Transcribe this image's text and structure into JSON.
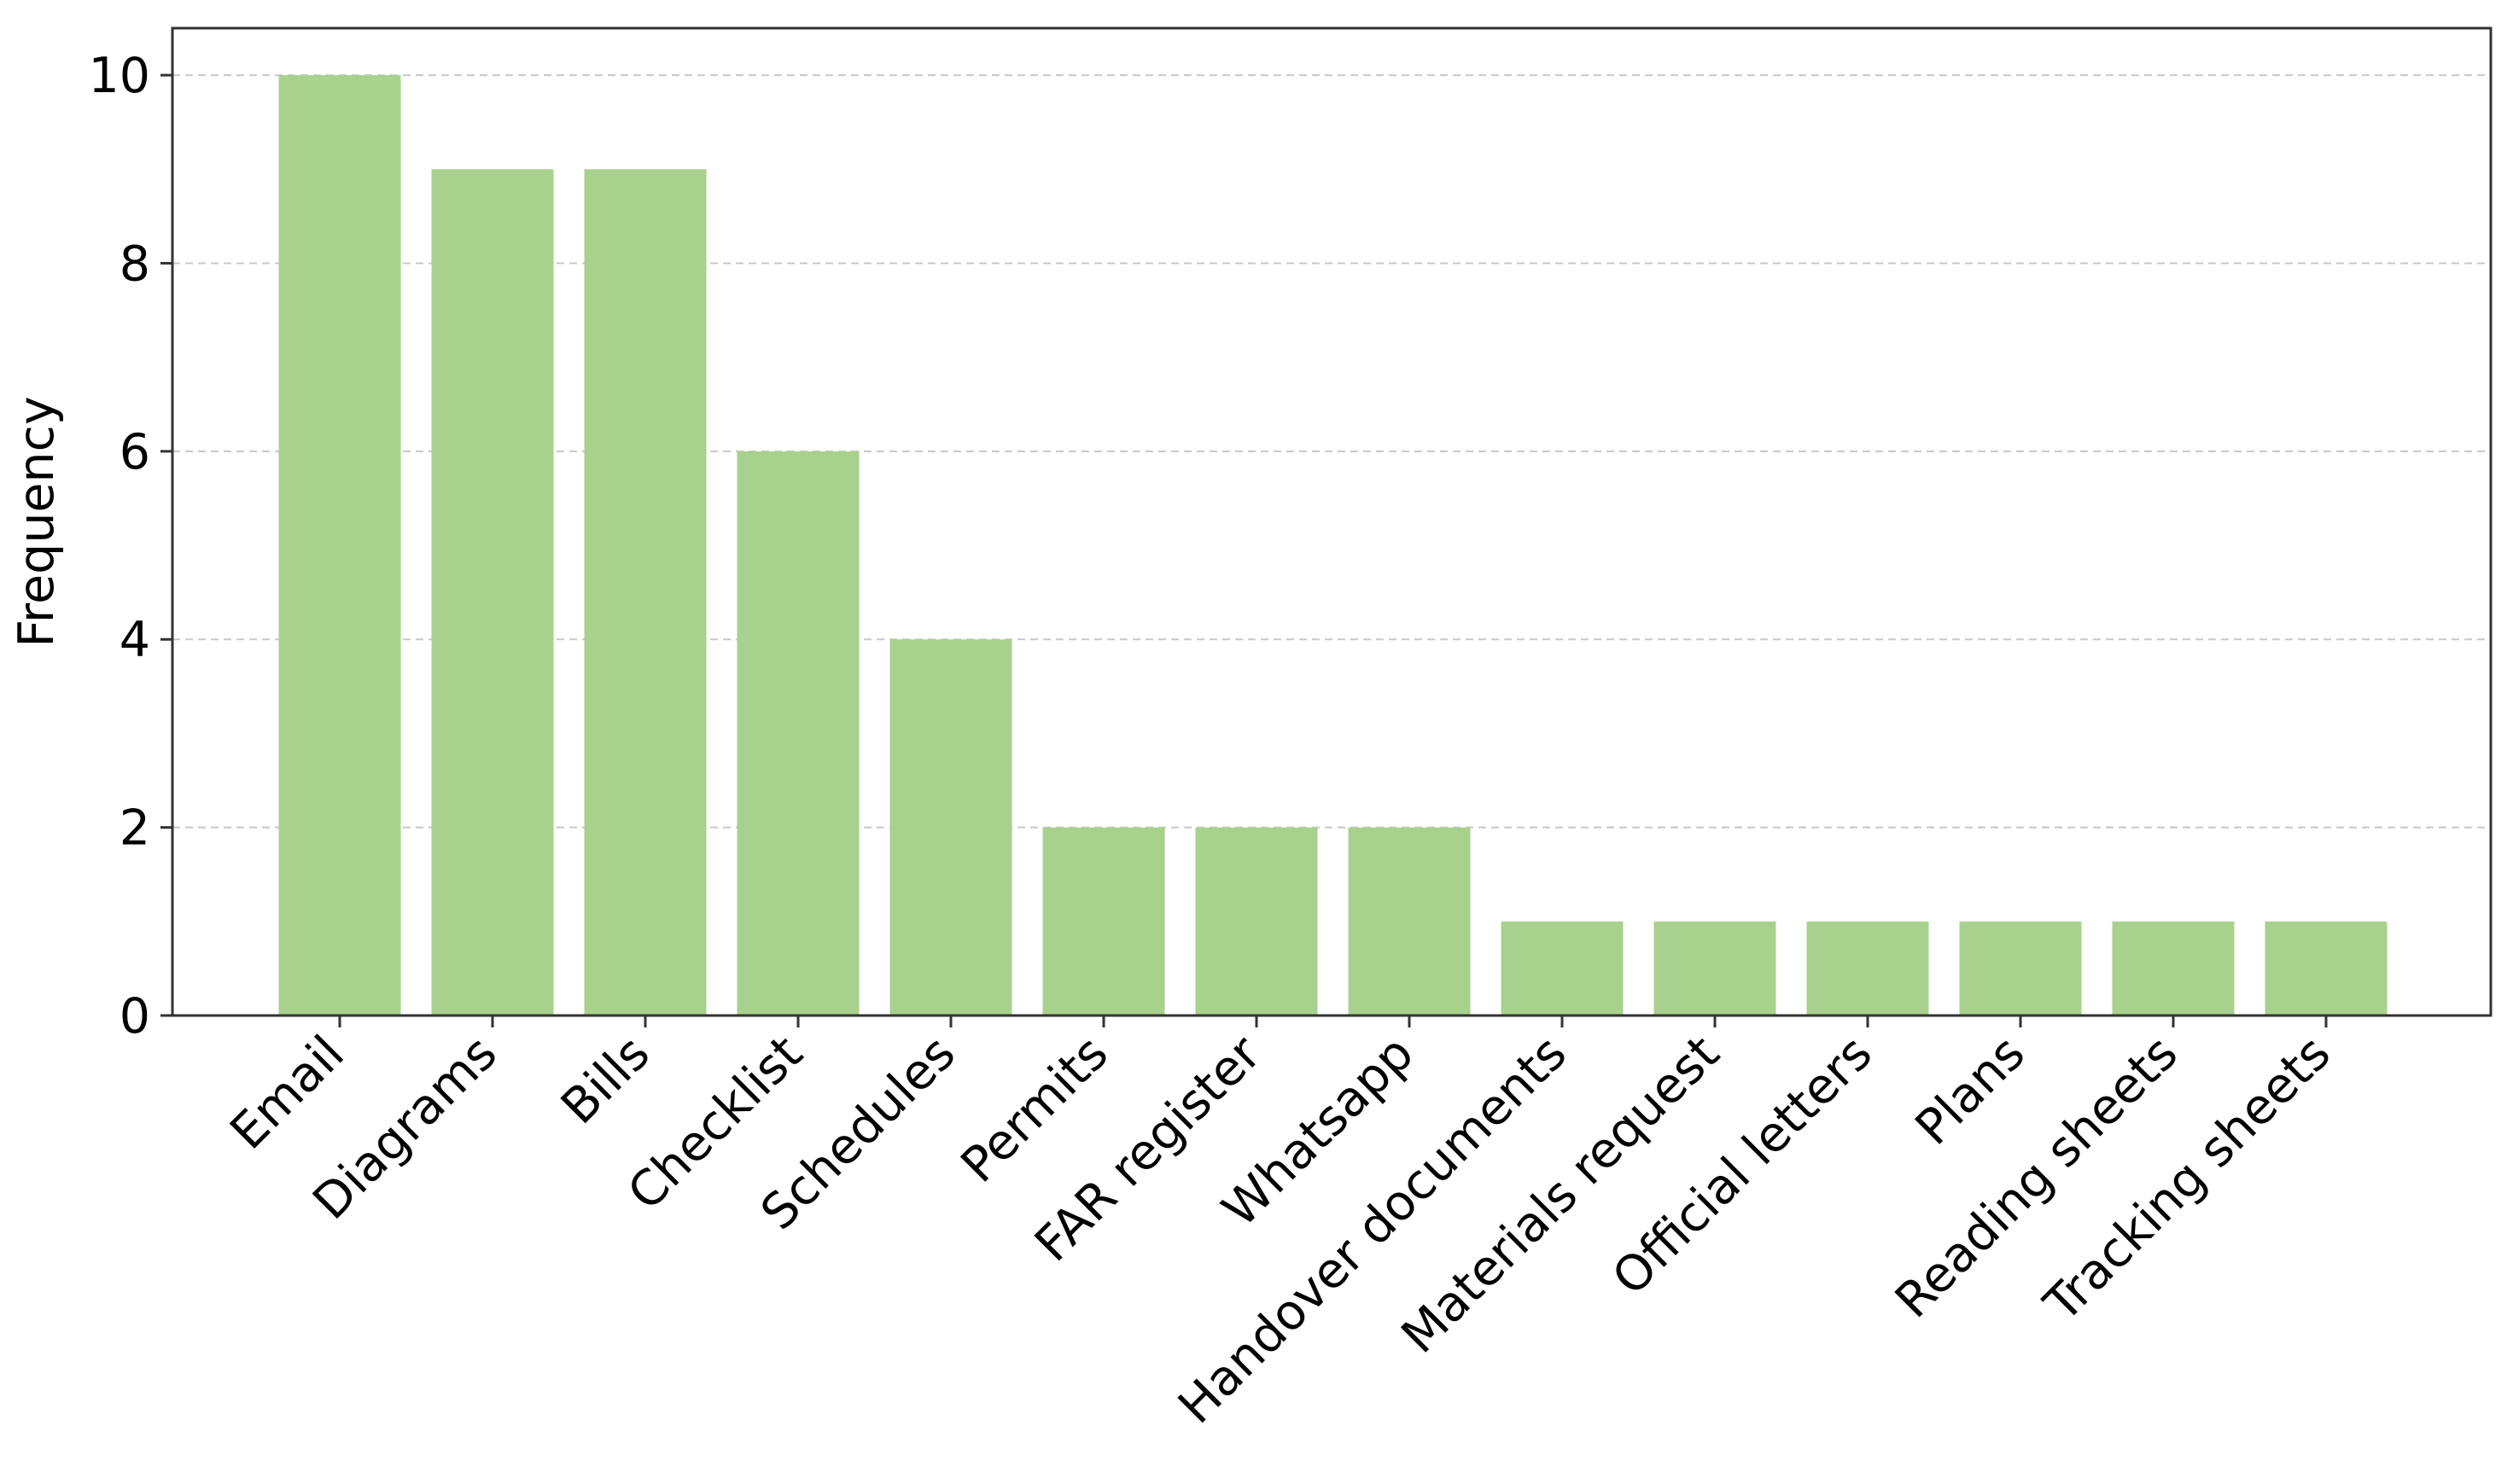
{
  "chart_data": {
    "type": "bar",
    "title": "",
    "xlabel": "",
    "ylabel": "Frequency",
    "categories": [
      "Email",
      "Diagrams",
      "Bills",
      "Checklist",
      "Schedules",
      "Permits",
      "FAR register",
      "Whatsapp",
      "Handover documents",
      "Materials request",
      "Official letters",
      "Plans",
      "Reading sheets",
      "Tracking sheets"
    ],
    "values": [
      10,
      9,
      9,
      6,
      4,
      2,
      2,
      2,
      1,
      1,
      1,
      1,
      1,
      1
    ],
    "ylim": [
      0,
      10.5
    ],
    "yticks": [
      0,
      2,
      4,
      6,
      8,
      10
    ],
    "ytick_labels": [
      "0",
      "2",
      "4",
      "6",
      "8",
      "10"
    ],
    "grid": "horizontal dashed",
    "bar_color": "#a8d18d",
    "grid_color": "#c8c8c8",
    "axis_color": "#333333"
  }
}
